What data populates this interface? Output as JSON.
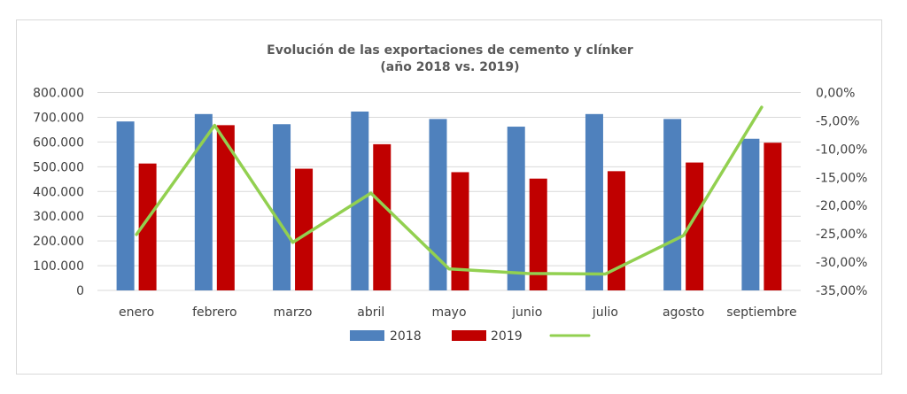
{
  "chart_data": {
    "type": "bar",
    "title": "Evolución de las exportaciones de cemento y clínker",
    "subtitle": "(año 2018 vs. 2019)",
    "xlabel": "",
    "ylabel": "",
    "categories": [
      "enero",
      "febrero",
      "marzo",
      "abril",
      "mayo",
      "junio",
      "julio",
      "agosto",
      "septiembre"
    ],
    "series": [
      {
        "name": "2018",
        "type": "bar",
        "axis": "left",
        "color": "#4F81BD",
        "values": [
          683000,
          713000,
          672000,
          723000,
          693000,
          662000,
          713000,
          693000,
          613000
        ]
      },
      {
        "name": "2019",
        "type": "bar",
        "axis": "left",
        "color": "#C00000",
        "values": [
          513000,
          668000,
          492000,
          591000,
          478000,
          452000,
          482000,
          517000,
          597000
        ]
      },
      {
        "name": "",
        "type": "line",
        "axis": "right",
        "color": "#92D050",
        "values": [
          -25.1,
          -5.8,
          -26.5,
          -17.8,
          -31.2,
          -32.0,
          -32.1,
          -25.3,
          -2.6
        ]
      }
    ],
    "y_left": {
      "ylim": [
        0,
        800000
      ],
      "ticks": [
        0,
        100000,
        200000,
        300000,
        400000,
        500000,
        600000,
        700000,
        800000
      ],
      "tick_labels": [
        "0",
        "100.000",
        "200.000",
        "300.000",
        "400.000",
        "500.000",
        "600.000",
        "700.000",
        "800.000"
      ]
    },
    "y_right": {
      "ylim": [
        -35,
        0
      ],
      "ticks": [
        0,
        -5,
        -10,
        -15,
        -20,
        -25,
        -30,
        -35
      ],
      "tick_labels": [
        "0,00%",
        "-5,00%",
        "-10,00%",
        "-15,00%",
        "-20,00%",
        "-25,00%",
        "-30,00%",
        "-35,00%"
      ]
    },
    "grid": true,
    "grid_color": "#d9d9d9",
    "legend": {
      "position": "bottom",
      "entries": [
        "2018",
        "2019",
        ""
      ]
    }
  }
}
